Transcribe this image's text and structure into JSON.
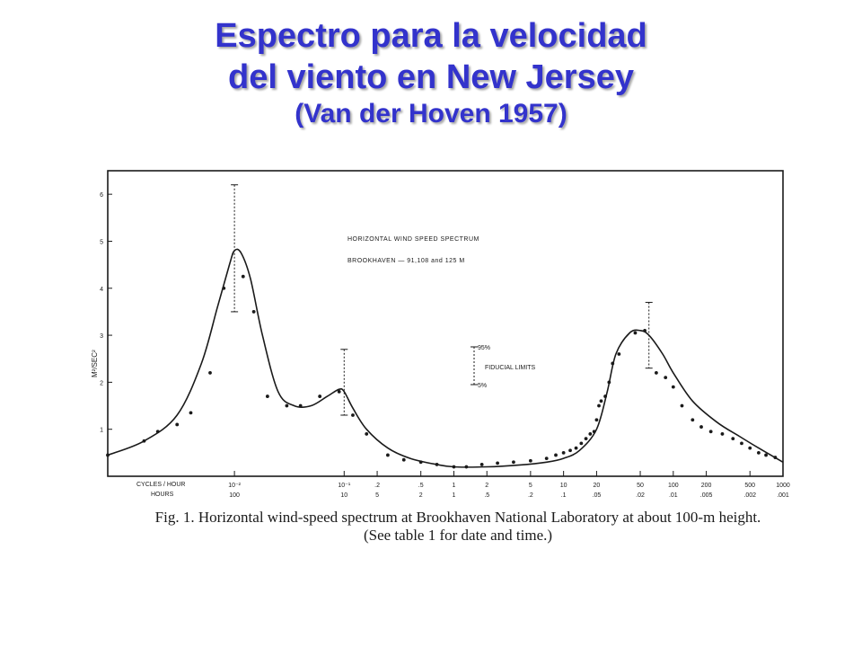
{
  "title": {
    "line1": "Espectro para la velocidad",
    "line2": "del viento en New Jersey",
    "line3": "(Van der Hoven 1957)"
  },
  "caption": {
    "line1": "Fig. 1. Horizontal wind-speed spectrum at Brookhaven National Laboratory at about 100-m height.",
    "line2": "(See table 1 for date and time.)"
  },
  "colors": {
    "title": "#3333cc",
    "ink": "#1a1a1a"
  },
  "chart_data": {
    "type": "line",
    "title": "HORIZONTAL WIND SPEED SPECTRUM",
    "subtitle": "BROOKHAVEN — 91,108 and 125 M",
    "ylabel": "M²/SEC²",
    "ylim": [
      0,
      6.5
    ],
    "yticks": [
      "1",
      "2",
      "3",
      "4",
      "5",
      "6"
    ],
    "x_scale": "log",
    "xlim": [
      0.0007,
      1000
    ],
    "x_row1_label": "CYCLES / HOUR",
    "x_row2_label": "HOURS",
    "xticks": [
      {
        "x": 0.01,
        "label1": "10⁻²",
        "label2": "100"
      },
      {
        "x": 0.1,
        "label1": "10⁻¹",
        "label2": "10"
      },
      {
        "x": 0.2,
        "label1": ".2",
        "label2": "5"
      },
      {
        "x": 0.5,
        "label1": ".5",
        "label2": "2"
      },
      {
        "x": 1,
        "label1": "1",
        "label2": "1"
      },
      {
        "x": 2,
        "label1": "2",
        "label2": ".5"
      },
      {
        "x": 5,
        "label1": "5",
        "label2": ".2"
      },
      {
        "x": 10,
        "label1": "10",
        "label2": ".1"
      },
      {
        "x": 20,
        "label1": "20",
        "label2": ".05"
      },
      {
        "x": 50,
        "label1": "50",
        "label2": ".02"
      },
      {
        "x": 100,
        "label1": "100",
        "label2": ".01"
      },
      {
        "x": 200,
        "label1": "200",
        "label2": ".005"
      },
      {
        "x": 500,
        "label1": "500",
        "label2": ".002"
      },
      {
        "x": 1000,
        "label1": "1000",
        "label2": ".001"
      }
    ],
    "curve": {
      "x": [
        0.0007,
        0.0015,
        0.003,
        0.005,
        0.007,
        0.009,
        0.01,
        0.0115,
        0.014,
        0.018,
        0.025,
        0.035,
        0.05,
        0.07,
        0.09,
        0.1,
        0.12,
        0.16,
        0.25,
        0.4,
        0.7,
        1,
        2,
        4,
        7,
        10,
        14,
        20,
        25,
        30,
        40,
        50,
        60,
        80,
        100,
        150,
        250,
        400,
        600,
        1000
      ],
      "y": [
        0.45,
        0.75,
        1.3,
        2.4,
        3.6,
        4.5,
        4.8,
        4.75,
        4.2,
        3.0,
        1.8,
        1.5,
        1.5,
        1.7,
        1.85,
        1.8,
        1.45,
        1.0,
        0.6,
        0.38,
        0.25,
        0.2,
        0.2,
        0.24,
        0.3,
        0.38,
        0.55,
        1.0,
        1.8,
        2.6,
        3.05,
        3.1,
        3.0,
        2.6,
        2.2,
        1.6,
        1.15,
        0.85,
        0.6,
        0.3
      ]
    },
    "points": {
      "x": [
        0.0007,
        0.0015,
        0.002,
        0.003,
        0.004,
        0.006,
        0.008,
        0.012,
        0.015,
        0.02,
        0.03,
        0.04,
        0.06,
        0.09,
        0.12,
        0.16,
        0.25,
        0.35,
        0.5,
        0.7,
        1,
        1.3,
        1.8,
        2.5,
        3.5,
        5,
        7,
        8.5,
        10,
        11.5,
        13,
        14.5,
        16,
        17.5,
        19,
        20,
        21,
        22,
        24,
        26,
        28,
        32,
        45,
        55,
        70,
        85,
        100,
        120,
        150,
        180,
        220,
        280,
        350,
        420,
        500,
        600,
        700,
        850
      ],
      "y": [
        0.45,
        0.75,
        0.95,
        1.1,
        1.35,
        2.2,
        4.0,
        4.25,
        3.5,
        1.7,
        1.5,
        1.5,
        1.7,
        1.8,
        1.3,
        0.9,
        0.45,
        0.35,
        0.3,
        0.25,
        0.2,
        0.2,
        0.25,
        0.28,
        0.3,
        0.33,
        0.38,
        0.45,
        0.5,
        0.55,
        0.6,
        0.7,
        0.8,
        0.9,
        0.95,
        1.2,
        1.5,
        1.6,
        1.7,
        2.0,
        2.4,
        2.6,
        3.05,
        3.1,
        2.2,
        2.1,
        1.9,
        1.5,
        1.2,
        1.05,
        0.95,
        0.9,
        0.8,
        0.7,
        0.6,
        0.5,
        0.45,
        0.4
      ]
    },
    "error_bars": [
      {
        "x": 0.01,
        "low": 3.5,
        "high": 6.2
      },
      {
        "x": 0.1,
        "low": 1.3,
        "high": 2.7
      },
      {
        "x": 60,
        "low": 2.3,
        "high": 3.7
      }
    ],
    "legend": {
      "upper": "95%",
      "middle": "FIDUCIAL LIMITS",
      "lower": "5%",
      "placement": "center"
    }
  }
}
